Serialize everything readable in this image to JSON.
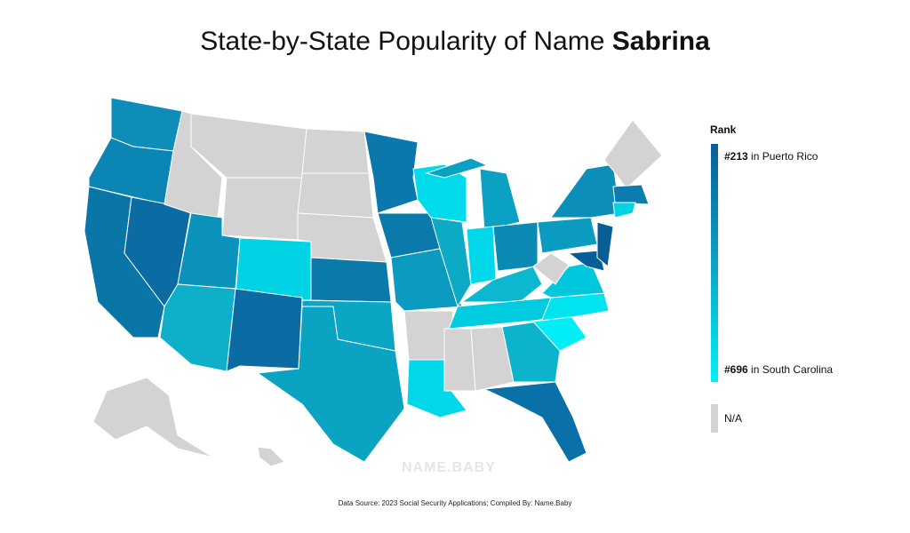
{
  "header": {
    "title": "State-by-State Popularity of Name",
    "name": "Sabrina"
  },
  "legend": {
    "title": "Rank",
    "top": {
      "rank": "#213",
      "place": "in Puerto Rico"
    },
    "bottom": {
      "rank": "#696",
      "place": "in South Carolina"
    },
    "na": "N/A"
  },
  "watermark": "NAME.BABY",
  "source": "Data Source: 2023 Social Security Applications; Compiled By: Name.Baby"
}
